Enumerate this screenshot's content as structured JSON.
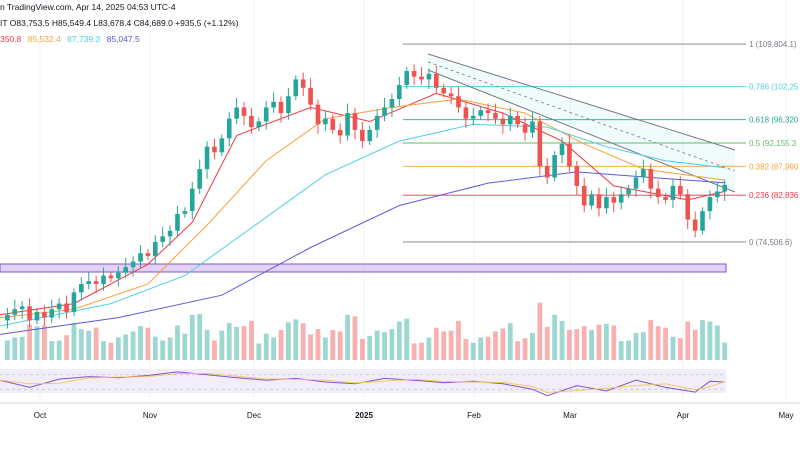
{
  "header": {
    "line1": "n TradingView.com, Apr 14, 2025 04:53 UTC-4",
    "line2": "IT  O83,753.5  H85,549.4  L83,678.4  C84,689.0  +935.5 (+1.12%)",
    "ma_values": [
      {
        "text": "350.8",
        "color": "#f23645"
      },
      {
        "text": "85,532.4",
        "color": "#f7a13a"
      },
      {
        "text": "87,739.3",
        "color": "#4dd0e1"
      },
      {
        "text": "85,047.5",
        "color": "#5b5bd6"
      }
    ]
  },
  "colors": {
    "up": "#26a69a",
    "down": "#ef5350",
    "ma1": "#f23645",
    "ma2": "#f7a13a",
    "ma3": "#4dd0e1",
    "ma4": "#5b5bd6",
    "channel": "#787b86",
    "rsi": "#7e57c2"
  },
  "chart_data": {
    "type": "candlestick",
    "x_ticks": [
      "Oct",
      "Nov",
      "Dec",
      "2025",
      "Feb",
      "Mar",
      "Apr",
      "May"
    ],
    "fib_levels": [
      {
        "label": "1 (109,804.1)",
        "value": 109804.1,
        "color": "#787b86"
      },
      {
        "label": "0.786 (102,25",
        "value": 102250,
        "color": "#4dd0e1"
      },
      {
        "label": "0.618 (96,320",
        "value": 96320,
        "color": "#26a69a"
      },
      {
        "label": "0.5 (92,155.3",
        "value": 92155.3,
        "color": "#66bb6a"
      },
      {
        "label": "0.382 (87,990",
        "value": 87990,
        "color": "#f7a13a"
      },
      {
        "label": "0.236 (82,836",
        "value": 82836,
        "color": "#f23645"
      },
      {
        "label": "0 (74,506.6)",
        "value": 74506.6,
        "color": "#787b86"
      }
    ],
    "price_range": [
      56000,
      112000
    ],
    "closes": [
      [
        0,
        60500
      ],
      [
        3,
        61500
      ],
      [
        6,
        62500
      ],
      [
        9,
        63000
      ],
      [
        12,
        60500
      ],
      [
        15,
        62000
      ],
      [
        18,
        61000
      ],
      [
        21,
        62500
      ],
      [
        24,
        63500
      ],
      [
        27,
        62000
      ],
      [
        30,
        65500
      ],
      [
        33,
        67000
      ],
      [
        36,
        67500
      ],
      [
        39,
        67000
      ],
      [
        42,
        68500
      ],
      [
        45,
        68000
      ],
      [
        48,
        69000
      ],
      [
        51,
        70000
      ],
      [
        54,
        71000
      ],
      [
        57,
        72500
      ],
      [
        60,
        72000
      ],
      [
        63,
        74500
      ],
      [
        66,
        75500
      ],
      [
        69,
        76500
      ],
      [
        72,
        79500
      ],
      [
        75,
        80000
      ],
      [
        78,
        84000
      ],
      [
        81,
        87500
      ],
      [
        84,
        91500
      ],
      [
        87,
        90500
      ],
      [
        90,
        93000
      ],
      [
        93,
        96500
      ],
      [
        96,
        98500
      ],
      [
        99,
        97000
      ],
      [
        102,
        95000
      ],
      [
        105,
        96000
      ],
      [
        108,
        98500
      ],
      [
        111,
        99500
      ],
      [
        114,
        97500
      ],
      [
        117,
        100500
      ],
      [
        120,
        103500
      ],
      [
        123,
        102000
      ],
      [
        126,
        99000
      ],
      [
        129,
        95500
      ],
      [
        132,
        96500
      ],
      [
        135,
        94500
      ],
      [
        138,
        93500
      ],
      [
        141,
        97500
      ],
      [
        144,
        94500
      ],
      [
        147,
        92500
      ],
      [
        150,
        94500
      ],
      [
        153,
        97000
      ],
      [
        156,
        98500
      ],
      [
        159,
        100000
      ],
      [
        162,
        102500
      ],
      [
        165,
        105000
      ],
      [
        168,
        104000
      ],
      [
        171,
        103500
      ],
      [
        174,
        104500
      ],
      [
        177,
        102000
      ],
      [
        180,
        101000
      ],
      [
        183,
        100500
      ],
      [
        186,
        98500
      ],
      [
        189,
        96500
      ],
      [
        192,
        97000
      ],
      [
        195,
        98000
      ],
      [
        198,
        97500
      ],
      [
        201,
        96500
      ],
      [
        204,
        95500
      ],
      [
        207,
        97000
      ],
      [
        210,
        95500
      ],
      [
        213,
        94000
      ],
      [
        216,
        96000
      ],
      [
        219,
        88000
      ],
      [
        222,
        86000
      ],
      [
        225,
        90000
      ],
      [
        228,
        92000
      ],
      [
        231,
        88000
      ],
      [
        234,
        84500
      ],
      [
        237,
        81000
      ],
      [
        240,
        83000
      ],
      [
        243,
        80500
      ],
      [
        246,
        82500
      ],
      [
        249,
        81500
      ],
      [
        252,
        83000
      ],
      [
        255,
        84000
      ],
      [
        258,
        86000
      ],
      [
        261,
        87500
      ],
      [
        264,
        84000
      ],
      [
        267,
        82500
      ],
      [
        270,
        82000
      ],
      [
        273,
        84500
      ],
      [
        276,
        83000
      ],
      [
        279,
        78500
      ],
      [
        282,
        76500
      ],
      [
        285,
        80000
      ],
      [
        288,
        82500
      ],
      [
        291,
        83500
      ],
      [
        294,
        84689
      ]
    ],
    "moving_averages": {
      "ma1": [
        [
          0,
          61500
        ],
        [
          30,
          63500
        ],
        [
          60,
          70500
        ],
        [
          78,
          78000
        ],
        [
          96,
          93500
        ],
        [
          126,
          98500
        ],
        [
          150,
          96000
        ],
        [
          177,
          101000
        ],
        [
          204,
          97500
        ],
        [
          228,
          92500
        ],
        [
          249,
          84500
        ],
        [
          279,
          82000
        ],
        [
          294,
          83500
        ]
      ],
      "ma2": [
        [
          0,
          61000
        ],
        [
          30,
          62500
        ],
        [
          60,
          67000
        ],
        [
          84,
          77500
        ],
        [
          108,
          89000
        ],
        [
          132,
          96500
        ],
        [
          159,
          98500
        ],
        [
          186,
          100000
        ],
        [
          213,
          97500
        ],
        [
          237,
          92000
        ],
        [
          261,
          87500
        ],
        [
          294,
          85532
        ]
      ],
      "ma3": [
        [
          0,
          59500
        ],
        [
          45,
          63500
        ],
        [
          75,
          68500
        ],
        [
          102,
          77000
        ],
        [
          132,
          86500
        ],
        [
          162,
          92500
        ],
        [
          192,
          95500
        ],
        [
          222,
          95000
        ],
        [
          246,
          91500
        ],
        [
          270,
          89000
        ],
        [
          294,
          87739
        ]
      ],
      "ma4": [
        [
          0,
          58000
        ],
        [
          48,
          61000
        ],
        [
          90,
          65000
        ],
        [
          126,
          73500
        ],
        [
          162,
          81000
        ],
        [
          198,
          85000
        ],
        [
          234,
          87000
        ],
        [
          264,
          86000
        ],
        [
          294,
          85047
        ]
      ]
    },
    "rsi": [
      [
        0,
        55
      ],
      [
        12,
        35
      ],
      [
        24,
        58
      ],
      [
        36,
        65
      ],
      [
        48,
        62
      ],
      [
        60,
        68
      ],
      [
        72,
        78
      ],
      [
        84,
        70
      ],
      [
        96,
        62
      ],
      [
        108,
        55
      ],
      [
        120,
        60
      ],
      [
        132,
        50
      ],
      [
        144,
        45
      ],
      [
        156,
        60
      ],
      [
        168,
        55
      ],
      [
        180,
        48
      ],
      [
        192,
        52
      ],
      [
        204,
        45
      ],
      [
        216,
        30
      ],
      [
        222,
        12
      ],
      [
        234,
        40
      ],
      [
        246,
        25
      ],
      [
        258,
        55
      ],
      [
        270,
        35
      ],
      [
        282,
        22
      ],
      [
        288,
        52
      ],
      [
        294,
        50
      ]
    ]
  }
}
